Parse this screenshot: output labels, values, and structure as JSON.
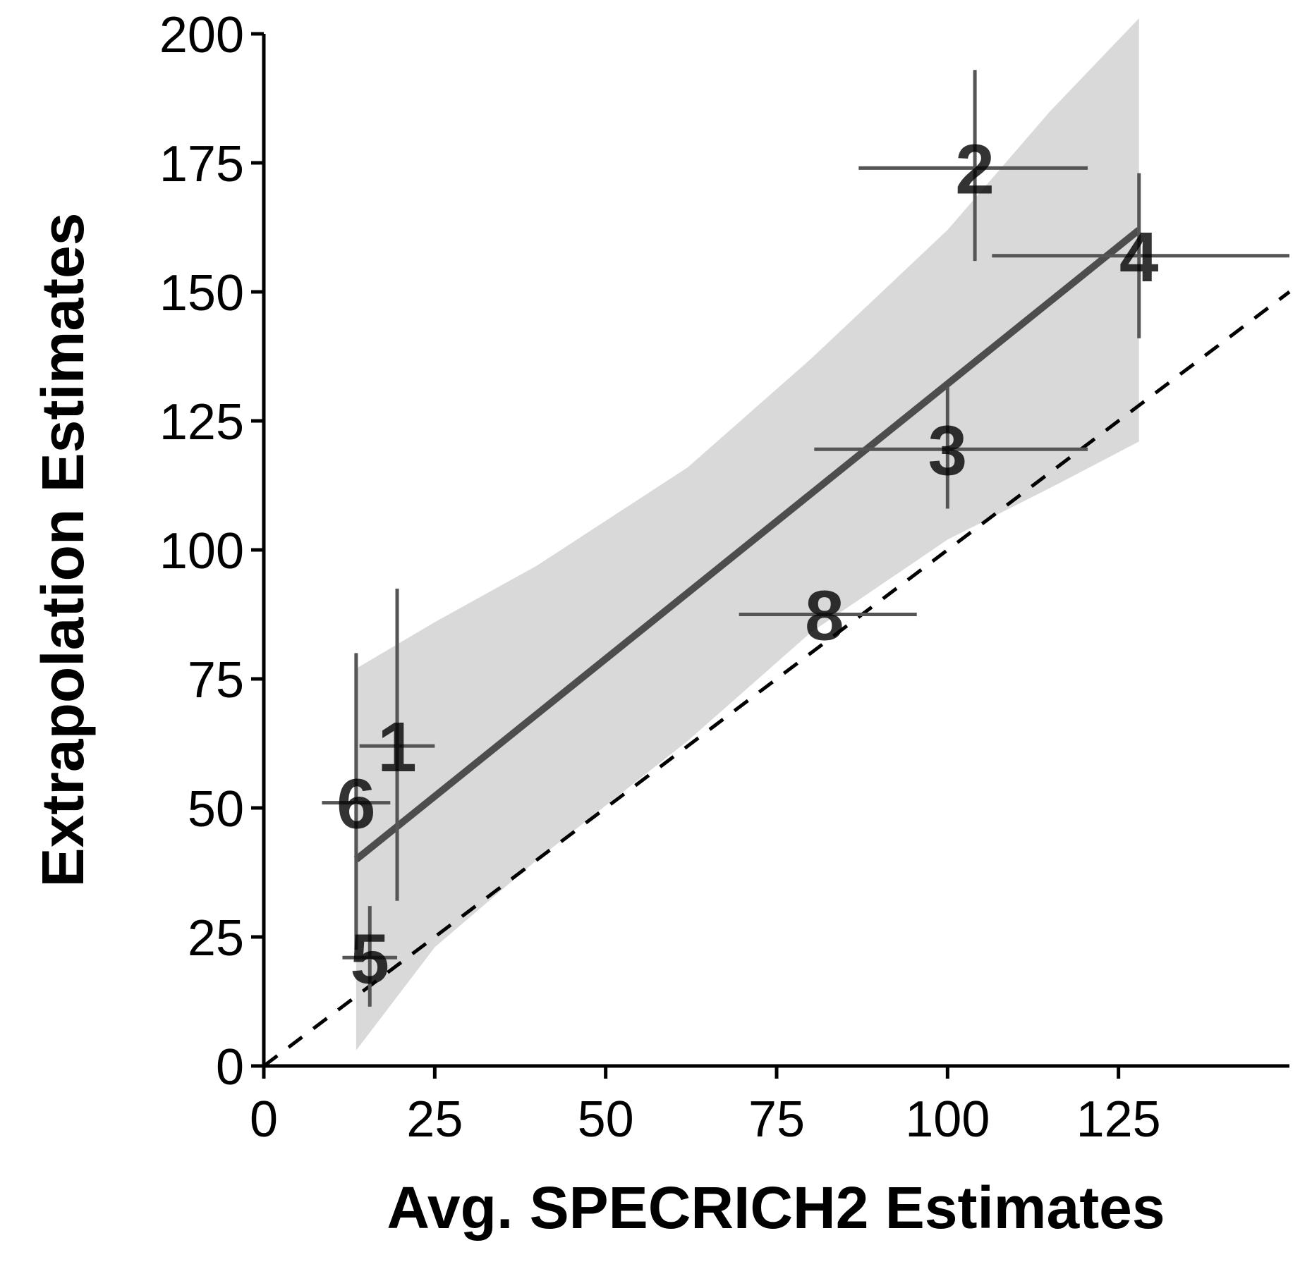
{
  "chart_data": {
    "type": "scatter",
    "title": "",
    "xlabel": "Avg. SPECRICH2 Estimates",
    "ylabel": "Extrapolation Estimates",
    "xlim": [
      0,
      150
    ],
    "ylim": [
      0,
      200
    ],
    "x_ticks": [
      "0",
      "25",
      "50",
      "75",
      "100",
      "125"
    ],
    "y_ticks": [
      "0",
      "25",
      "50",
      "75",
      "100",
      "125",
      "150",
      "175",
      "200"
    ],
    "points": [
      {
        "label": "1",
        "x": 19.5,
        "y": 62,
        "x_err": [
          14,
          25
        ],
        "y_err": [
          32,
          92.5
        ]
      },
      {
        "label": "2",
        "x": 104,
        "y": 174,
        "x_err": [
          87,
          120.5
        ],
        "y_err": [
          156,
          193
        ]
      },
      {
        "label": "3",
        "x": 100,
        "y": 119.5,
        "x_err": [
          80.5,
          120.5
        ],
        "y_err": [
          108,
          131.5
        ]
      },
      {
        "label": "4",
        "x": 128,
        "y": 157,
        "x_err": [
          106.5,
          150
        ],
        "y_err": [
          141,
          173
        ]
      },
      {
        "label": "5",
        "x": 15.5,
        "y": 21,
        "x_err": [
          11.5,
          19.5
        ],
        "y_err": [
          11.5,
          31
        ]
      },
      {
        "label": "6",
        "x": 13.5,
        "y": 51,
        "x_err": [
          8.5,
          18.5
        ],
        "y_err": [
          22.5,
          80
        ]
      },
      {
        "label": "8",
        "x": 82,
        "y": 87.5,
        "x_err": [
          69.5,
          95.5
        ],
        "y_err": [
          87.5,
          87.5
        ]
      }
    ],
    "regression": {
      "x": [
        13.5,
        128
      ],
      "y": [
        40,
        162
      ]
    },
    "confidence_band": {
      "x": [
        13.5,
        25,
        40,
        62,
        80,
        100,
        115,
        128
      ],
      "upper": [
        77,
        86,
        97,
        116,
        137,
        162,
        185,
        203
      ],
      "lower": [
        3,
        23,
        40,
        63,
        84,
        102,
        112,
        121
      ]
    },
    "reference_line": {
      "type": "identity",
      "style": "dashed",
      "x": [
        0,
        150
      ],
      "y": [
        0,
        150
      ]
    },
    "grid": false,
    "legend": "none",
    "colors": {
      "band": "#d9d9d9",
      "regression": "#4d4d4d",
      "errorbar": "#555555",
      "reference": "#000000",
      "axis": "#000000"
    }
  }
}
